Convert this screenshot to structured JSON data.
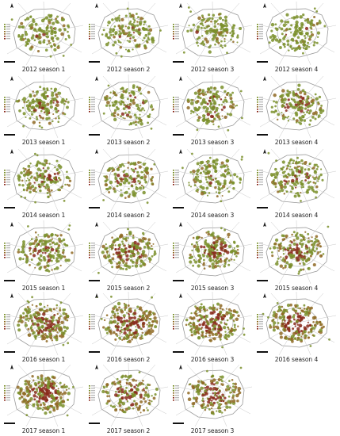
{
  "figure": {
    "panels": [
      {
        "label": "2012 season 1",
        "density": 0.35,
        "red_share": 0.05
      },
      {
        "label": "2012 season 2",
        "density": 0.42,
        "red_share": 0.05
      },
      {
        "label": "2012 season 3",
        "density": 0.38,
        "red_share": 0.05
      },
      {
        "label": "2012 season 4",
        "density": 0.4,
        "red_share": 0.05
      },
      {
        "label": "2013 season 1",
        "density": 0.5,
        "red_share": 0.2
      },
      {
        "label": "2013 season 2",
        "density": 0.35,
        "red_share": 0.2
      },
      {
        "label": "2013 season 3",
        "density": 0.48,
        "red_share": 0.25
      },
      {
        "label": "2013 season 4",
        "density": 0.48,
        "red_share": 0.25
      },
      {
        "label": "2014 season 1",
        "density": 0.45,
        "red_share": 0.3
      },
      {
        "label": "2014 season 2",
        "density": 0.42,
        "red_share": 0.25
      },
      {
        "label": "2014 season 3",
        "density": 0.4,
        "red_share": 0.2
      },
      {
        "label": "2014 season 4",
        "density": 0.55,
        "red_share": 0.2
      },
      {
        "label": "2015 season 1",
        "density": 0.55,
        "red_share": 0.25
      },
      {
        "label": "2015 season 2",
        "density": 0.7,
        "red_share": 0.45
      },
      {
        "label": "2015 season 3",
        "density": 0.68,
        "red_share": 0.45
      },
      {
        "label": "2015 season 4",
        "density": 0.6,
        "red_share": 0.45
      },
      {
        "label": "2016 season 1",
        "density": 0.85,
        "red_share": 0.55
      },
      {
        "label": "2016 season 2",
        "density": 0.9,
        "red_share": 0.65
      },
      {
        "label": "2016 season 3",
        "density": 0.92,
        "red_share": 0.7
      },
      {
        "label": "2016 season 4",
        "density": 0.8,
        "red_share": 0.75
      },
      {
        "label": "2017 season 1",
        "density": 0.95,
        "red_share": 0.75
      },
      {
        "label": "2017 season 2",
        "density": 0.55,
        "red_share": 0.65
      },
      {
        "label": "2017 season 3",
        "density": 0.62,
        "red_share": 0.65
      }
    ],
    "colors": {
      "road": "#9a9a9a",
      "road_light": "#c8c8c8",
      "low": "#7a8f2a",
      "mid": "#8f6a24",
      "high": "#8a2a1c",
      "scale_bar": "#111111",
      "text": "#222222"
    },
    "icons": [
      "north-arrow-icon",
      "scale-bar",
      "legend-block"
    ]
  }
}
